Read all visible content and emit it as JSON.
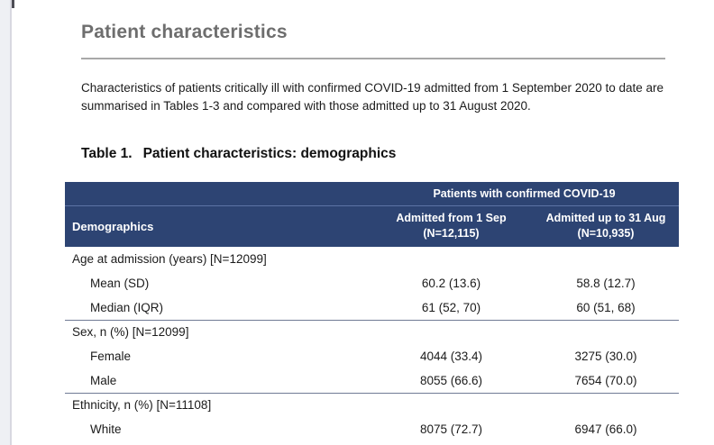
{
  "page": {
    "heading": "Patient characteristics",
    "intro": "Characteristics of patients critically ill with confirmed COVID-19 admitted from 1 September 2020 to date are summarised in Tables 1-3 and compared with those admitted up to 31 August 2020.",
    "table_caption_label": "Table 1.",
    "table_caption_title": "Patient characteristics: demographics"
  },
  "table": {
    "span_header": "Patients with confirmed COVID-19",
    "col1_header": "Demographics",
    "col2_header": {
      "line1": "Admitted from 1 Sep",
      "line2": "(N=12,115)"
    },
    "col3_header": {
      "line1": "Admitted up to 31 Aug",
      "line2": "(N=10,935)"
    },
    "groups": [
      {
        "label": "Age at admission (years) [N=12099]",
        "rows": [
          {
            "label": "Mean (SD)",
            "col2": "60.2 (13.6)",
            "col3": "58.8 (12.7)"
          },
          {
            "label": "Median (IQR)",
            "col2": "61 (52, 70)",
            "col3": "60 (51, 68)"
          }
        ]
      },
      {
        "label": "Sex, n (%) [N=12099]",
        "rows": [
          {
            "label": "Female",
            "col2": "4044 (33.4)",
            "col3": "3275 (30.0)"
          },
          {
            "label": "Male",
            "col2": "8055 (66.6)",
            "col3": "7654 (70.0)"
          }
        ]
      },
      {
        "label": "Ethnicity, n (%) [N=11108]",
        "rows": [
          {
            "label": "White",
            "col2": "8075 (72.7)",
            "col3": "6947 (66.0)"
          }
        ]
      }
    ]
  },
  "colors": {
    "table_header_bg": "#2d4473",
    "table_header_text": "#ffffff",
    "header_separator": "#5d74a5",
    "group_divider": "#707b95",
    "heading_text": "#6e6e6e",
    "body_text": "#1b1b1b",
    "title_rule": "#a8a8a8",
    "page_edge_bg": "#eef0f4",
    "page_edge_line": "#d8d8e0"
  }
}
